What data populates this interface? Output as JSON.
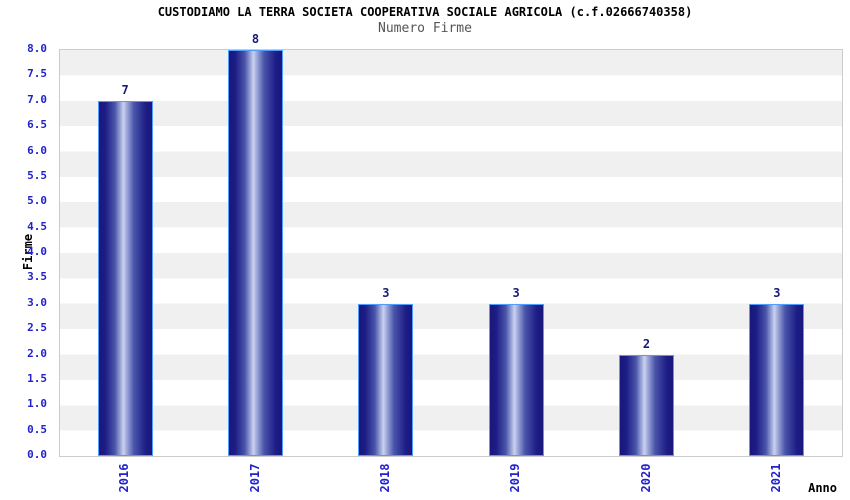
{
  "header": {
    "title": "CUSTODIAMO LA TERRA SOCIETA COOPERATIVA SOCIALE AGRICOLA (c.f.02666740358)",
    "subtitle": "Numero Firme"
  },
  "axes": {
    "x_label": "Anno",
    "y_label": "Firme"
  },
  "chart_data": {
    "type": "bar",
    "title": "CUSTODIAMO LA TERRA SOCIETA COOPERATIVA SOCIALE AGRICOLA (c.f.02666740358)",
    "subtitle": "Numero Firme",
    "categories": [
      "2016",
      "2017",
      "2018",
      "2019",
      "2020",
      "2021"
    ],
    "values": [
      7,
      8,
      3,
      3,
      2,
      3
    ],
    "value_labels": [
      "7",
      "8",
      "3",
      "3",
      "2",
      "3"
    ],
    "xlabel": "Anno",
    "ylabel": "Firme",
    "ylim": [
      0.0,
      8.0
    ],
    "ytick_step": 0.5,
    "ytick_labels": [
      "8.0",
      "7.5",
      "7.0",
      "6.5",
      "6.0",
      "5.5",
      "5.0",
      "4.5",
      "4.0",
      "3.5",
      "3.0",
      "2.5",
      "2.0",
      "1.5",
      "1.0",
      "0.5",
      "0.0"
    ],
    "legend": "none",
    "grid": "alternating horizontal bands every 0.5 units, gray then white from top",
    "bar_style": "vertical cylinder gradient, dark navy edges with light center, light blue outline"
  },
  "colors": {
    "page_bg": "#ffffff",
    "title_color": "#000000",
    "subtitle_color": "#555555",
    "tick_label_blue": "#2222cc",
    "value_label_navy": "#1a1a78",
    "bar_dark": "#17177c",
    "bar_light": "#ccd2ee",
    "bar_border": "#4f9eff",
    "band_gray": "#f0f0f0",
    "band_white": "#ffffff",
    "plot_border": "#cccccc"
  }
}
